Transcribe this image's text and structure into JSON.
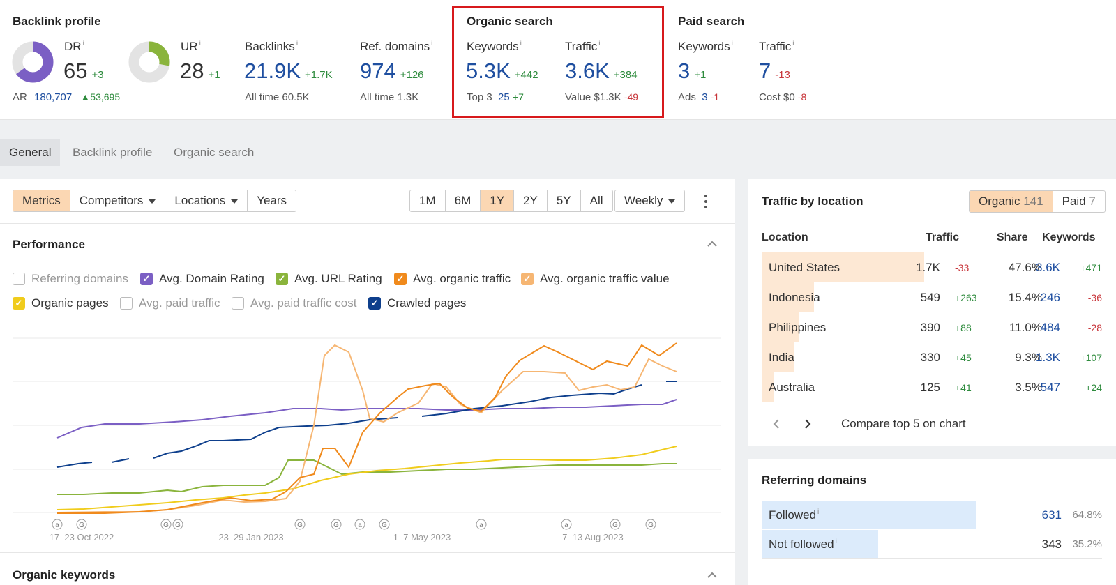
{
  "backlink_profile": {
    "title": "Backlink profile",
    "dr": {
      "label": "DR",
      "value": "65",
      "delta": "+3",
      "fraction": 0.65
    },
    "ar": {
      "label": "AR",
      "value": "180,707",
      "delta": "53,695"
    },
    "ur": {
      "label": "UR",
      "value": "28",
      "delta": "+1",
      "fraction": 0.28
    },
    "backlinks": {
      "label": "Backlinks",
      "value": "21.9K",
      "delta": "+1.7K",
      "sub_label": "All time",
      "sub_value": "60.5K"
    },
    "ref_domains": {
      "label": "Ref. domains",
      "value": "974",
      "delta": "+126",
      "sub_label": "All time",
      "sub_value": "1.3K"
    }
  },
  "organic_search": {
    "title": "Organic search",
    "keywords": {
      "label": "Keywords",
      "value": "5.3K",
      "delta": "+442",
      "sub_label": "Top 3",
      "sub_value": "25",
      "sub_delta": "+7"
    },
    "traffic": {
      "label": "Traffic",
      "value": "3.6K",
      "delta": "+384",
      "sub_label": "Value",
      "sub_value": "$1.3K",
      "sub_delta": "-49"
    }
  },
  "paid_search": {
    "title": "Paid search",
    "keywords": {
      "label": "Keywords",
      "value": "3",
      "delta": "+1",
      "sub_label": "Ads",
      "sub_value": "3",
      "sub_delta": "-1"
    },
    "traffic": {
      "label": "Traffic",
      "value": "7",
      "delta": "-13",
      "sub_label": "Cost",
      "sub_value": "$0",
      "sub_delta": "-8"
    }
  },
  "info_mark": "i",
  "tabs": [
    "General",
    "Backlink profile",
    "Organic search"
  ],
  "toolbar": {
    "left": [
      "Metrics",
      "Competitors",
      "Locations",
      "Years"
    ],
    "ranges": [
      "1M",
      "6M",
      "1Y",
      "2Y",
      "5Y",
      "All"
    ],
    "interval": "Weekly"
  },
  "performance": {
    "title": "Performance",
    "checkboxes": [
      {
        "label": "Referring domains",
        "checked": false,
        "color": "#cccccc"
      },
      {
        "label": "Avg. Domain Rating",
        "checked": true,
        "color": "#7b5fc4"
      },
      {
        "label": "Avg. URL Rating",
        "checked": true,
        "color": "#8ab43c"
      },
      {
        "label": "Avg. organic traffic",
        "checked": true,
        "color": "#f08a1c"
      },
      {
        "label": "Avg. organic traffic value",
        "checked": true,
        "color": "#f6b673"
      },
      {
        "label": "Organic pages",
        "checked": true,
        "color": "#f0cc1c"
      },
      {
        "label": "Avg. paid traffic",
        "checked": false,
        "color": "#cccccc"
      },
      {
        "label": "Avg. paid traffic cost",
        "checked": false,
        "color": "#cccccc"
      },
      {
        "label": "Crawled pages",
        "checked": true,
        "color": "#0e3f8c"
      }
    ],
    "x_labels": [
      "17–23 Oct 2022",
      "23–29 Jan 2023",
      "1–7 May 2023",
      "7–13 Aug 2023"
    ],
    "markers": [
      "a",
      "G",
      "G",
      "G",
      "G",
      "G",
      "a",
      "G",
      "a",
      "a",
      "G",
      "G"
    ]
  },
  "organic_keywords": {
    "title": "Organic keywords"
  },
  "traffic_by_location": {
    "title": "Traffic by location",
    "toggle": [
      {
        "label": "Organic",
        "count": "141"
      },
      {
        "label": "Paid",
        "count": "7"
      }
    ],
    "headers": [
      "Location",
      "Traffic",
      "Share",
      "Keywords"
    ],
    "rows": [
      {
        "location": "United States",
        "traffic": "1.7K",
        "traffic_delta": "-33",
        "share": "47.6%",
        "share_value": 47.6,
        "keywords": "3.6K",
        "keywords_delta": "+471"
      },
      {
        "location": "Indonesia",
        "traffic": "549",
        "traffic_delta": "+263",
        "share": "15.4%",
        "share_value": 15.4,
        "keywords": "246",
        "keywords_delta": "-36"
      },
      {
        "location": "Philippines",
        "traffic": "390",
        "traffic_delta": "+88",
        "share": "11.0%",
        "share_value": 11.0,
        "keywords": "484",
        "keywords_delta": "-28"
      },
      {
        "location": "India",
        "traffic": "330",
        "traffic_delta": "+45",
        "share": "9.3%",
        "share_value": 9.3,
        "keywords": "1.3K",
        "keywords_delta": "+107"
      },
      {
        "location": "Australia",
        "traffic": "125",
        "traffic_delta": "+41",
        "share": "3.5%",
        "share_value": 3.5,
        "keywords": "547",
        "keywords_delta": "+24"
      }
    ],
    "compare_label": "Compare top 5 on chart"
  },
  "referring_domains": {
    "title": "Referring domains",
    "rows": [
      {
        "label": "Followed",
        "value": "631",
        "percent": "64.8%",
        "fraction": 0.648
      },
      {
        "label": "Not followed",
        "value": "343",
        "percent": "35.2%",
        "fraction": 0.352
      }
    ]
  },
  "colors": {
    "highlight_border": "#d7191c",
    "accent_orange": "#fbd7b3",
    "link_blue": "#1f4fa0"
  }
}
